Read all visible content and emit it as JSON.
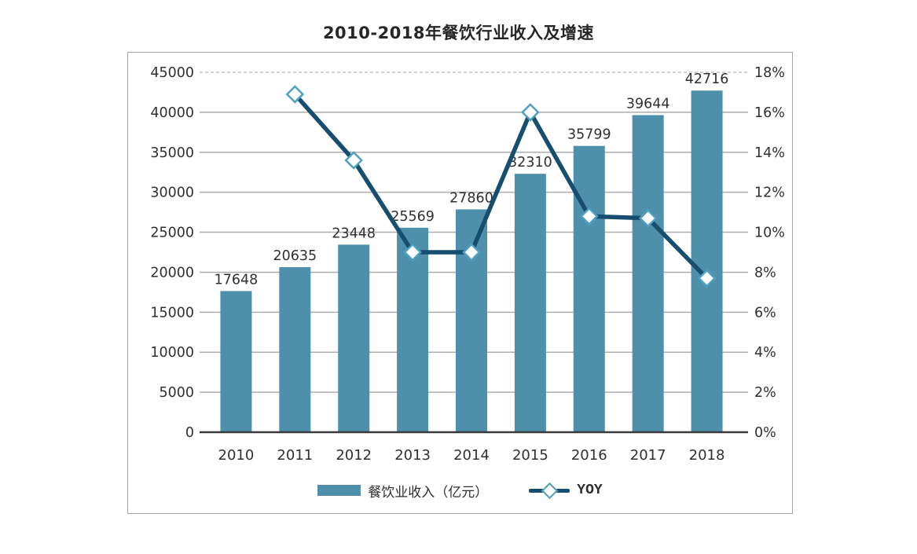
{
  "title": "2010-2018年餐饮行业收入及增速",
  "legend": {
    "bar_label": "餐饮业收入（亿元）",
    "line_label": "YOY"
  },
  "colors": {
    "bar_fill": "#4E90AC",
    "line": "#174E6F",
    "marker_fill": "#FFFFFF",
    "marker_stroke": "#4FA0C0",
    "grid": "#ADADAD",
    "grid_dashed": "#C2C2C2",
    "axis": "#3A3A3A",
    "text": "#303030",
    "border": "#A6A6A6"
  },
  "chart_data": {
    "type": "bar+line",
    "title": "2010-2018年餐饮行业收入及增速",
    "categories": [
      "2010",
      "2011",
      "2012",
      "2013",
      "2014",
      "2015",
      "2016",
      "2017",
      "2018"
    ],
    "series": [
      {
        "name": "餐饮业收入（亿元）",
        "type": "bar",
        "axis": "left",
        "color": "#4E90AC",
        "values": [
          17648,
          20635,
          23448,
          25569,
          27860,
          32310,
          35799,
          39644,
          42716
        ]
      },
      {
        "name": "YOY",
        "type": "line",
        "axis": "right",
        "color": "#174E6F",
        "marker": "diamond",
        "marker_fill": "#FFFFFF",
        "marker_stroke": "#4FA0C0",
        "values": [
          null,
          16.9,
          13.6,
          9.0,
          9.0,
          16.0,
          10.8,
          10.7,
          7.7
        ],
        "unit": "%"
      }
    ],
    "left_axis": {
      "min": 0,
      "max": 45000,
      "step": 5000,
      "ticks": [
        "0",
        "5000",
        "10000",
        "15000",
        "20000",
        "25000",
        "30000",
        "35000",
        "40000",
        "45000"
      ]
    },
    "right_axis": {
      "min": 0,
      "max": 18,
      "step": 2,
      "ticks": [
        "0%",
        "2%",
        "4%",
        "6%",
        "8%",
        "10%",
        "12%",
        "14%",
        "16%",
        "18%"
      ]
    },
    "grid": "horizontal gridlines, topmost (45000/18%) dashed, baseline dark",
    "legend_position": "bottom-center",
    "bar_value_labels_shown": true
  }
}
